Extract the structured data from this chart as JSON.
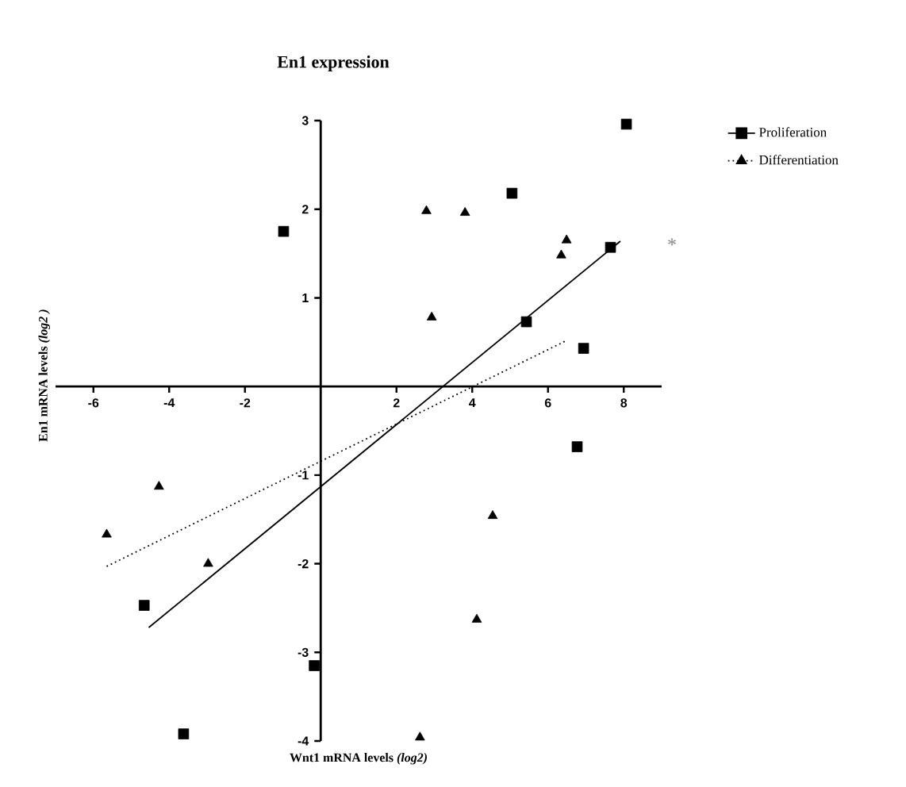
{
  "chart_data": {
    "type": "scatter",
    "title": "En1 expression",
    "xlabel": "Wnt1 mRNA levels *(log2)*",
    "ylabel": "En1 mRNA levels *(log2 )*",
    "xlim": [
      -7,
      9
    ],
    "ylim": [
      -4,
      3
    ],
    "xticks": [
      -6,
      -4,
      -2,
      2,
      4,
      6,
      8
    ],
    "yticks": [
      -4,
      -3,
      -2,
      -1,
      1,
      2,
      3
    ],
    "legend": "top right",
    "annotations": [
      "*"
    ],
    "series": [
      {
        "name": "Proliferation",
        "color": "#000000",
        "marker": "square",
        "line_style": "solid",
        "x": [
          8.07,
          5.05,
          -0.98,
          7.65,
          5.43,
          6.94,
          6.77,
          -4.66,
          -0.17,
          -3.62
        ],
        "values": [
          2.96,
          2.18,
          1.75,
          1.57,
          0.73,
          0.43,
          -0.68,
          -2.47,
          -3.15,
          -3.92
        ]
      },
      {
        "name": "Differentiation",
        "color": "#000000",
        "marker": "triangle",
        "line_style": "dotted",
        "x": [
          2.79,
          3.81,
          2.93,
          6.49,
          6.35,
          -4.27,
          -5.65,
          -2.97,
          4.54,
          4.12,
          2.62
        ],
        "values": [
          1.98,
          1.96,
          0.78,
          1.65,
          1.48,
          -1.13,
          -1.67,
          -2.0,
          -1.46,
          -2.63,
          -3.96
        ]
      },
      {
        "type": "line",
        "color": "#000000",
        "line_style": "solid",
        "marker": "none",
        "x": [
          -4.54,
          7.91
        ],
        "values": [
          -2.72,
          1.64
        ]
      },
      {
        "type": "line",
        "color": "#000000",
        "line_style": "dotted",
        "marker": "none",
        "x": [
          -5.65,
          6.45
        ],
        "values": [
          -2.03,
          0.51
        ]
      }
    ]
  }
}
